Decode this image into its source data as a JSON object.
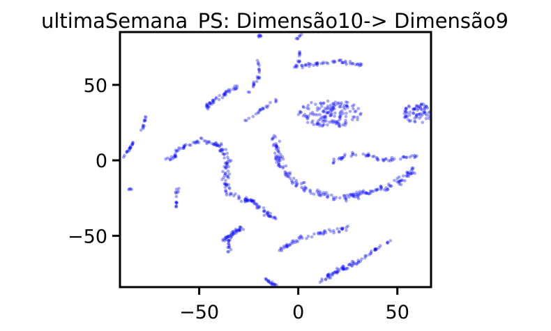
{
  "chart_data": {
    "type": "scatter",
    "title": "ultimaSemana_PS: Dimensão10-> Dimensão9",
    "xlabel": "",
    "ylabel": "",
    "xlim": [
      -90,
      67
    ],
    "ylim": [
      -84,
      85
    ],
    "grid": false,
    "legend": "none",
    "x_ticks": [
      -50,
      0,
      50
    ],
    "y_ticks": [
      50,
      0,
      -50
    ],
    "x_tick_labels": [
      "−50",
      "0",
      "50"
    ],
    "y_tick_labels": [
      "50",
      "0",
      "−50"
    ],
    "point_color": "#0000ff",
    "clusters": [
      {
        "shape": "path",
        "points": [
          [
            -65,
            0
          ],
          [
            -60,
            8
          ],
          [
            -50,
            13
          ],
          [
            -40,
            10
          ],
          [
            -35,
            0
          ],
          [
            -37,
            -12
          ],
          [
            -35,
            -22
          ],
          [
            -22,
            -28
          ],
          [
            -12,
            -40
          ]
        ],
        "width": 2.5,
        "n": 170
      },
      {
        "shape": "path",
        "points": [
          [
            -12,
            15
          ],
          [
            -10,
            0
          ],
          [
            -5,
            -12
          ],
          [
            5,
            -20
          ],
          [
            20,
            -25
          ],
          [
            35,
            -22
          ],
          [
            50,
            -15
          ],
          [
            60,
            -5
          ]
        ],
        "width": 3,
        "n": 190
      },
      {
        "shape": "path",
        "points": [
          [
            17,
            -2
          ],
          [
            25,
            4
          ],
          [
            35,
            3
          ],
          [
            45,
            0
          ],
          [
            60,
            3
          ]
        ],
        "width": 2,
        "n": 55
      },
      {
        "shape": "blob",
        "center": [
          16,
          31
        ],
        "r": [
          16,
          9
        ],
        "n": 150
      },
      {
        "shape": "blob",
        "center": [
          60,
          31
        ],
        "r": [
          7,
          7
        ],
        "n": 70
      },
      {
        "shape": "path",
        "points": [
          [
            -47,
            35
          ],
          [
            -40,
            42
          ],
          [
            -30,
            50
          ]
        ],
        "width": 2,
        "n": 45
      },
      {
        "shape": "path",
        "points": [
          [
            -25,
            45
          ],
          [
            -20,
            55
          ],
          [
            -20,
            66
          ]
        ],
        "width": 1,
        "n": 22
      },
      {
        "shape": "path",
        "points": [
          [
            -28,
            25
          ],
          [
            -20,
            32
          ],
          [
            -11,
            40
          ]
        ],
        "width": 1,
        "n": 20
      },
      {
        "shape": "path",
        "points": [
          [
            -2,
            62
          ],
          [
            10,
            64
          ],
          [
            20,
            66
          ],
          [
            32,
            63
          ]
        ],
        "width": 1.5,
        "n": 50
      },
      {
        "shape": "path",
        "points": [
          [
            0,
            62
          ],
          [
            1,
            72
          ]
        ],
        "width": 1,
        "n": 10
      },
      {
        "shape": "path",
        "points": [
          [
            -20,
            82
          ],
          [
            -17,
            84
          ]
        ],
        "width": 0.8,
        "n": 6
      },
      {
        "shape": "path",
        "points": [
          [
            -1,
            80
          ],
          [
            2,
            84
          ]
        ],
        "width": 0.8,
        "n": 6
      },
      {
        "shape": "path",
        "points": [
          [
            -38,
            -53
          ],
          [
            -32,
            -48
          ],
          [
            -28,
            -45
          ]
        ],
        "width": 2,
        "n": 40
      },
      {
        "shape": "path",
        "points": [
          [
            -35,
            -52
          ],
          [
            -35,
            -62
          ]
        ],
        "width": 1,
        "n": 12
      },
      {
        "shape": "path",
        "points": [
          [
            -10,
            -60
          ],
          [
            0,
            -52
          ],
          [
            12,
            -48
          ],
          [
            25,
            -45
          ]
        ],
        "width": 2,
        "n": 55
      },
      {
        "shape": "path",
        "points": [
          [
            11,
            -80
          ],
          [
            20,
            -73
          ],
          [
            30,
            -67
          ]
        ],
        "width": 2,
        "n": 50
      },
      {
        "shape": "path",
        "points": [
          [
            30,
            -68
          ],
          [
            40,
            -58
          ],
          [
            48,
            -52
          ]
        ],
        "width": 1,
        "n": 25
      },
      {
        "shape": "path",
        "points": [
          [
            -18,
            -78
          ],
          [
            -10,
            -84
          ]
        ],
        "width": 1.5,
        "n": 18
      },
      {
        "shape": "path",
        "points": [
          [
            -90,
            0
          ],
          [
            -85,
            8
          ],
          [
            -82,
            14
          ]
        ],
        "width": 1,
        "n": 18
      },
      {
        "shape": "path",
        "points": [
          [
            -79,
            19
          ],
          [
            -77,
            29
          ]
        ],
        "width": 0.8,
        "n": 12
      },
      {
        "shape": "path",
        "points": [
          [
            -61,
            -18
          ],
          [
            -62,
            -32
          ]
        ],
        "width": 1,
        "n": 14
      },
      {
        "shape": "blob",
        "center": [
          -85,
          -19
        ],
        "r": [
          1,
          1
        ],
        "n": 4
      }
    ]
  }
}
